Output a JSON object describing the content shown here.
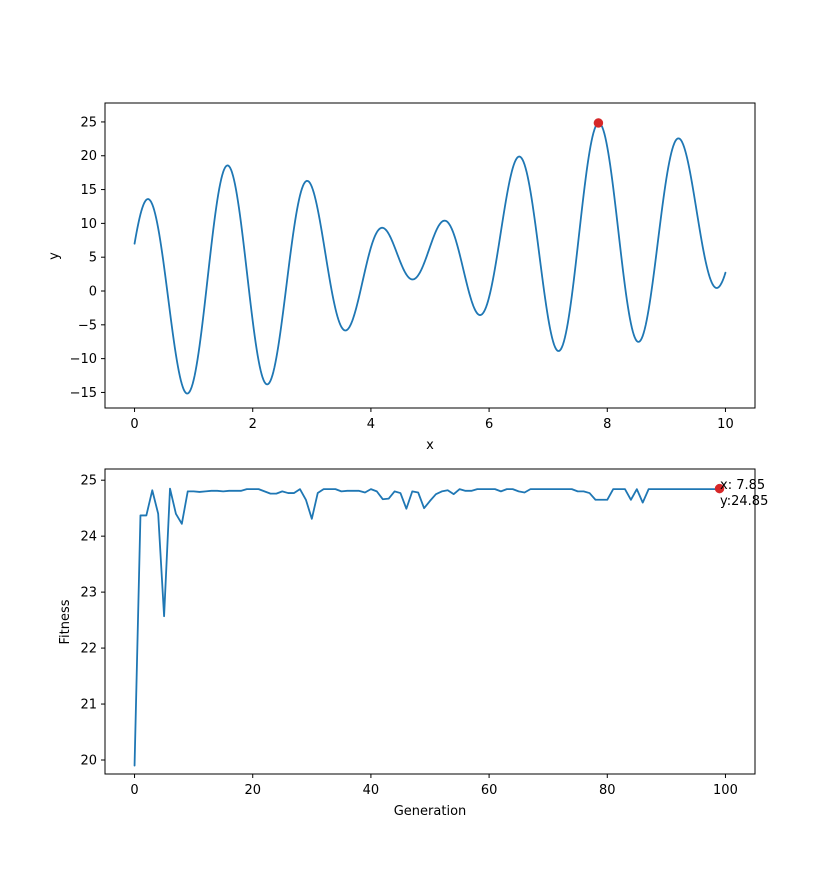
{
  "colors": {
    "line": "#1f77b4",
    "marker": "#d62728",
    "axis": "#000000",
    "background": "#ffffff"
  },
  "chart_data": [
    {
      "type": "line",
      "title": "",
      "xlabel": "x",
      "ylabel": "y",
      "xlim": [
        -0.5,
        10.5
      ],
      "ylim": [
        -17.3,
        27.8
      ],
      "xticks": [
        0,
        2,
        4,
        6,
        8,
        10
      ],
      "yticks": [
        -15,
        -10,
        -5,
        0,
        5,
        10,
        15,
        20,
        25
      ],
      "grid": false,
      "legend": "none",
      "function": "x + 10*sin(5x) + 7*cos(4x)",
      "x_start": 0,
      "x_end": 10,
      "samples": 600,
      "highlight": {
        "x": 7.85,
        "y": 24.85
      }
    },
    {
      "type": "line",
      "title": "",
      "xlabel": "Generation",
      "ylabel": "Fitness",
      "xlim": [
        -5,
        105
      ],
      "ylim": [
        19.75,
        25.2
      ],
      "xticks": [
        0,
        20,
        40,
        60,
        80,
        100
      ],
      "yticks": [
        20,
        21,
        22,
        23,
        24,
        25
      ],
      "grid": false,
      "legend": "none",
      "x": [
        0,
        1,
        2,
        3,
        4,
        5,
        6,
        7,
        8,
        9,
        10,
        11,
        12,
        13,
        14,
        15,
        16,
        17,
        18,
        19,
        20,
        21,
        22,
        23,
        24,
        25,
        26,
        27,
        28,
        29,
        30,
        31,
        32,
        33,
        34,
        35,
        36,
        37,
        38,
        39,
        40,
        41,
        42,
        43,
        44,
        45,
        46,
        47,
        48,
        49,
        50,
        51,
        52,
        53,
        54,
        55,
        56,
        57,
        58,
        59,
        60,
        61,
        62,
        63,
        64,
        65,
        66,
        67,
        68,
        69,
        70,
        71,
        72,
        73,
        74,
        75,
        76,
        77,
        78,
        79,
        80,
        81,
        82,
        83,
        84,
        85,
        86,
        87,
        88,
        89,
        90,
        91,
        92,
        93,
        94,
        95,
        96,
        97,
        98,
        99
      ],
      "values": [
        19.9,
        24.37,
        24.37,
        24.82,
        24.4,
        22.57,
        24.85,
        24.4,
        24.22,
        24.8,
        24.8,
        24.79,
        24.8,
        24.81,
        24.81,
        24.8,
        24.81,
        24.81,
        24.81,
        24.84,
        24.84,
        24.84,
        24.8,
        24.76,
        24.76,
        24.8,
        24.77,
        24.77,
        24.84,
        24.65,
        24.31,
        24.77,
        24.84,
        24.84,
        24.84,
        24.8,
        24.81,
        24.81,
        24.81,
        24.78,
        24.84,
        24.8,
        24.66,
        24.67,
        24.8,
        24.77,
        24.49,
        24.8,
        24.78,
        24.5,
        24.63,
        24.75,
        24.8,
        24.82,
        24.75,
        24.84,
        24.81,
        24.81,
        24.84,
        24.84,
        24.84,
        24.84,
        24.8,
        24.84,
        24.84,
        24.8,
        24.78,
        24.84,
        24.84,
        24.84,
        24.84,
        24.84,
        24.84,
        24.84,
        24.84,
        24.8,
        24.8,
        24.77,
        24.65,
        24.65,
        24.65,
        24.84,
        24.84,
        24.84,
        24.65,
        24.84,
        24.6,
        24.84,
        24.84,
        24.84,
        24.84,
        24.84,
        24.84,
        24.84,
        24.84,
        24.84,
        24.84,
        24.84,
        24.84,
        24.84
      ],
      "highlight": {
        "x": 99,
        "y": 24.85
      },
      "annotation": {
        "line1": "x: 7.85",
        "line2": "y:24.85"
      }
    }
  ]
}
